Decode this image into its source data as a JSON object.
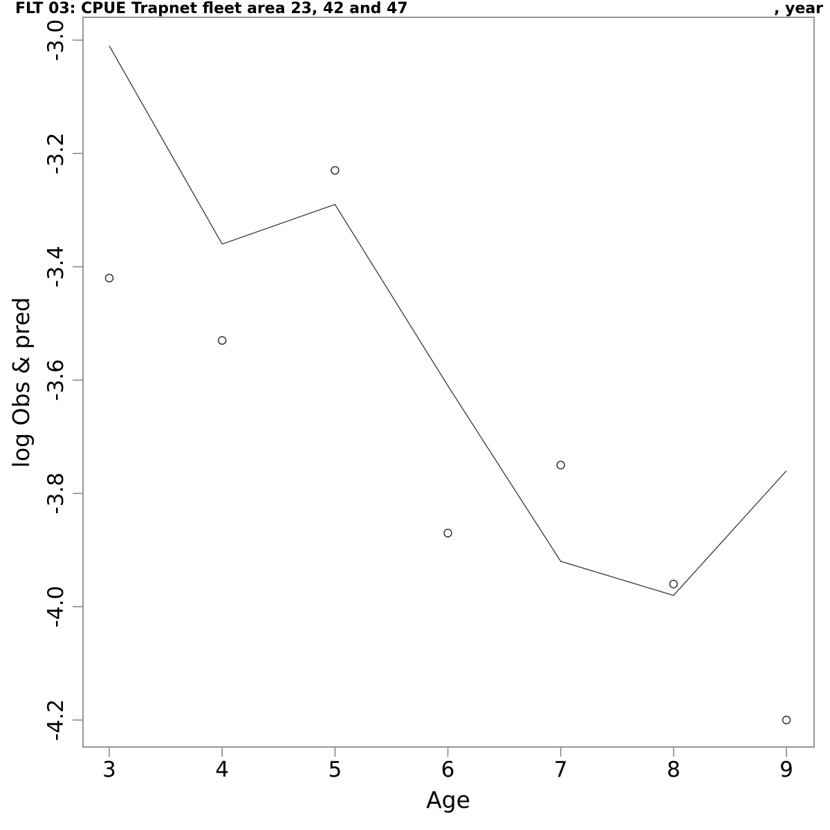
{
  "title": {
    "left": "FLT 03: CPUE Trapnet fleet area 23, 42 and 47",
    "right": ", year"
  },
  "chart_data": {
    "type": "line",
    "x": [
      3,
      4,
      5,
      6,
      7,
      8,
      9
    ],
    "series": [
      {
        "name": "pred",
        "style": "line",
        "values": [
          -3.01,
          -3.36,
          -3.29,
          -3.61,
          -3.92,
          -3.98,
          -3.76
        ]
      },
      {
        "name": "obs",
        "style": "points",
        "values": [
          -3.42,
          -3.53,
          -3.23,
          -3.87,
          -3.75,
          -3.96,
          -4.2
        ]
      }
    ],
    "xlabel": "Age",
    "ylabel": "log Obs & pred",
    "xlim": [
      3,
      9
    ],
    "ylim": [
      -4.25,
      -2.96
    ],
    "xticks": [
      3,
      4,
      5,
      6,
      7,
      8,
      9
    ],
    "xtick_labels": [
      "3",
      "4",
      "5",
      "6",
      "7",
      "8",
      "9"
    ],
    "yticks": [
      -3.0,
      -3.2,
      -3.4,
      -3.6,
      -3.8,
      -4.0,
      -4.2
    ],
    "ytick_labels": [
      "-3.0",
      "-3.2",
      "-3.4",
      "-3.6",
      "-3.8",
      "-4.0",
      "-4.2"
    ],
    "grid": false,
    "legend": "none",
    "colors": {
      "line": "#262626",
      "point_stroke": "#262626",
      "frame": "#8a8a8a",
      "text": "#000000",
      "background": "#ffffff"
    }
  }
}
